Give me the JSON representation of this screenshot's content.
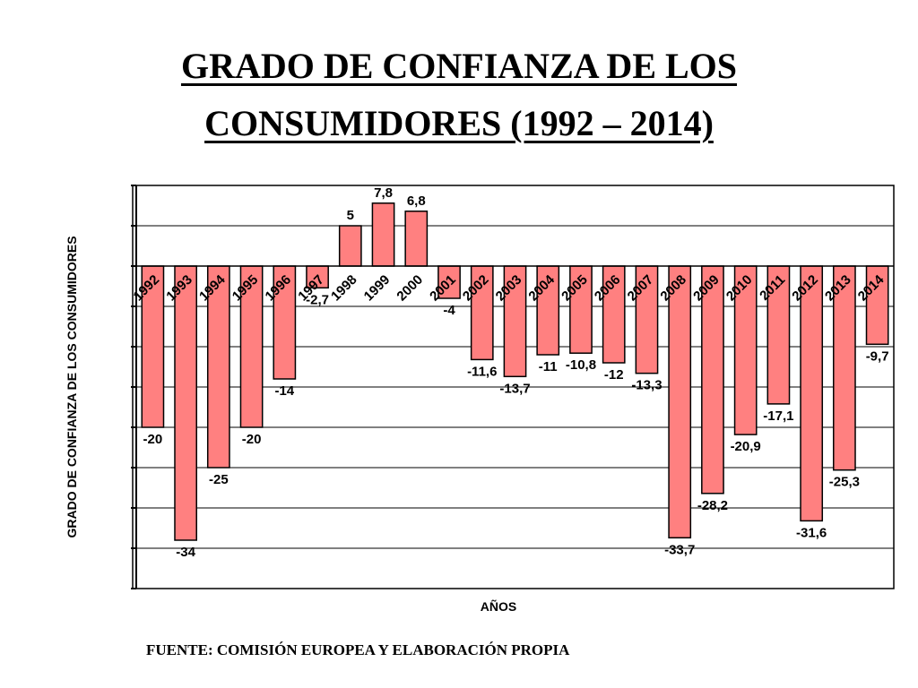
{
  "title": {
    "line1": "GRADO DE CONFIANZA DE LOS",
    "line2": "CONSUMIDORES (1992 – 2014)"
  },
  "source_note": "FUENTE: COMISIÓN EUROPEA Y ELABORACIÓN PROPIA",
  "colors": {
    "bar_fill": "#ff8080",
    "bar_stroke": "#000000",
    "plot_background": "#ffffff",
    "gridline": "#000000"
  },
  "chart_data": {
    "type": "bar",
    "title": "GRADO DE CONFIANZA DE LOS CONSUMIDORES (1992 – 2014)",
    "xlabel": "AÑOS",
    "ylabel": "GRADO DE CONFIANZA DE LOS CONSUMIDORES",
    "ylim": [
      -40,
      10
    ],
    "grid": true,
    "legend": "none",
    "categories": [
      "1992",
      "1993",
      "1994",
      "1995",
      "1996",
      "1997",
      "1998",
      "1999",
      "2000",
      "2001",
      "2002",
      "2003",
      "2004",
      "2005",
      "2006",
      "2007",
      "2008",
      "2009",
      "2010",
      "2011",
      "2012",
      "2013",
      "2014"
    ],
    "values": [
      -20,
      -34,
      -25,
      -20,
      -14,
      -2.7,
      5,
      7.8,
      6.8,
      -4,
      -11.6,
      -13.7,
      -11,
      -10.8,
      -12,
      -13.3,
      -33.7,
      -28.2,
      -20.9,
      -17.1,
      -31.6,
      -25.3,
      -9.7
    ],
    "value_labels": [
      "-20",
      "-34",
      "-25",
      "-20",
      "-14",
      "-2,7",
      "5",
      "7,8",
      "6,8",
      "-4",
      "-11,6",
      "-13,7",
      "-11",
      "-10,8",
      "-12",
      "-13,3",
      "-33,7",
      "-28,2",
      "-20,9",
      "-17,1",
      "-31,6",
      "-25,3",
      "-9,7"
    ]
  }
}
